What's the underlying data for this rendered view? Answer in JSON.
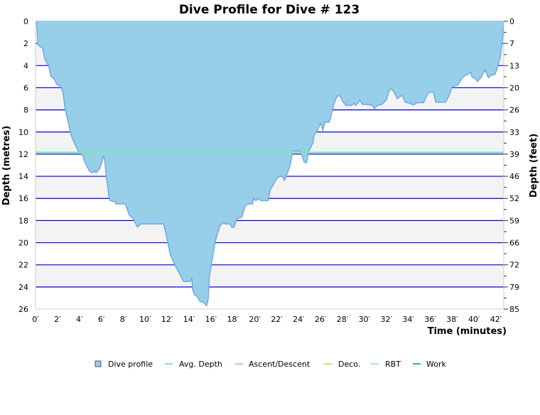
{
  "chart_data": {
    "type": "area",
    "title": "Dive Profile for Dive # 123",
    "xlabel": "Time (minutes)",
    "ylabel": "Depth (metres)",
    "ylabel_right": "Depth (feet)",
    "xlim": [
      0,
      42.7
    ],
    "ylim": [
      0,
      26
    ],
    "y_inverted": true,
    "grid": true,
    "x_ticks": [
      "0′",
      "2′",
      "4′",
      "6′",
      "8′",
      "10′",
      "12′",
      "14′",
      "16′",
      "18′",
      "20′",
      "22′",
      "24′",
      "26′",
      "28′",
      "30′",
      "32′",
      "34′",
      "36′",
      "38′",
      "40′",
      "42′"
    ],
    "y_ticks": [
      "0",
      "2",
      "4",
      "6",
      "8",
      "10",
      "12",
      "14",
      "16",
      "18",
      "20",
      "22",
      "24",
      "26"
    ],
    "y_ticks_right": [
      "0",
      "7",
      "13",
      "20",
      "26",
      "33",
      "39",
      "46",
      "52",
      "59",
      "66",
      "72",
      "79",
      "85"
    ],
    "avg_depth": 11.85,
    "legend_position": "bottom",
    "legend": [
      {
        "label": "Dive profile",
        "color": "#97cfe9",
        "kind": "box"
      },
      {
        "label": "Avg. Depth",
        "color": "#7fe3b8",
        "kind": "line"
      },
      {
        "label": "Ascent/Descent",
        "color": "#9be89b",
        "kind": "line"
      },
      {
        "label": "Deco.",
        "color": "#d6e060",
        "kind": "line"
      },
      {
        "label": "RBT",
        "color": "#a8dcf5",
        "kind": "line"
      },
      {
        "label": "Work",
        "color": "#2fbf8f",
        "kind": "line"
      }
    ],
    "colors": {
      "profile_fill": "#97cfe9",
      "profile_stroke": "#6aa8e8",
      "grid": "#0000e0",
      "band": "#f3f3f3"
    },
    "series": [
      {
        "name": "Dive profile",
        "points": [
          [
            0,
            0
          ],
          [
            0.1,
            0
          ],
          [
            0.2,
            2.0
          ],
          [
            0.3,
            2.2
          ],
          [
            0.65,
            2.4
          ],
          [
            0.87,
            3.5
          ],
          [
            1.2,
            4.0
          ],
          [
            1.4,
            5.0
          ],
          [
            1.7,
            5.2
          ],
          [
            1.95,
            5.7
          ],
          [
            2.3,
            5.9
          ],
          [
            2.5,
            6.4
          ],
          [
            2.7,
            7.9
          ],
          [
            3.0,
            9.2
          ],
          [
            3.25,
            10.3
          ],
          [
            3.6,
            11.1
          ],
          [
            3.9,
            11.7
          ],
          [
            4.3,
            12.1
          ],
          [
            4.5,
            12.7
          ],
          [
            4.9,
            13.5
          ],
          [
            5.2,
            13.7
          ],
          [
            5.4,
            13.5
          ],
          [
            5.5,
            13.7
          ],
          [
            5.85,
            13.3
          ],
          [
            6.2,
            12.2
          ],
          [
            6.3,
            12.4
          ],
          [
            6.4,
            13.6
          ],
          [
            6.7,
            15.8
          ],
          [
            6.8,
            16.2
          ],
          [
            7.25,
            16.3
          ],
          [
            7.35,
            16.5
          ],
          [
            8.2,
            16.5
          ],
          [
            8.55,
            17.5
          ],
          [
            8.9,
            17.8
          ],
          [
            9.3,
            18.6
          ],
          [
            9.6,
            18.3
          ],
          [
            11.7,
            18.3
          ],
          [
            12.0,
            19.7
          ],
          [
            12.3,
            21.1
          ],
          [
            12.8,
            22.2
          ],
          [
            13.2,
            22.9
          ],
          [
            13.5,
            23.5
          ],
          [
            14.1,
            23.5
          ],
          [
            14.25,
            23.2
          ],
          [
            14.35,
            24.3
          ],
          [
            14.5,
            24.7
          ],
          [
            14.7,
            24.8
          ],
          [
            15.0,
            25.3
          ],
          [
            15.35,
            25.4
          ],
          [
            15.6,
            25.7
          ],
          [
            15.75,
            25.1
          ],
          [
            15.85,
            23.1
          ],
          [
            16.0,
            22.2
          ],
          [
            16.35,
            20.1
          ],
          [
            16.55,
            19.3
          ],
          [
            16.85,
            18.4
          ],
          [
            17.2,
            18.2
          ],
          [
            17.3,
            18.3
          ],
          [
            17.75,
            18.3
          ],
          [
            17.9,
            18.6
          ],
          [
            18.1,
            18.6
          ],
          [
            18.4,
            17.8
          ],
          [
            18.8,
            17.7
          ],
          [
            19.15,
            16.6
          ],
          [
            19.5,
            16.5
          ],
          [
            19.8,
            16.5
          ],
          [
            19.9,
            16.0
          ],
          [
            20.1,
            16.2
          ],
          [
            20.35,
            16.0
          ],
          [
            20.55,
            16.2
          ],
          [
            21.2,
            16.2
          ],
          [
            21.4,
            15.2
          ],
          [
            21.6,
            14.9
          ],
          [
            21.9,
            14.35
          ],
          [
            22.2,
            14.0
          ],
          [
            22.5,
            14.0
          ],
          [
            22.7,
            14.35
          ],
          [
            22.9,
            13.9
          ],
          [
            23.2,
            13.1
          ],
          [
            23.4,
            12.0
          ],
          [
            23.5,
            11.7
          ],
          [
            24.1,
            11.7
          ],
          [
            24.3,
            12.1
          ],
          [
            24.5,
            12.7
          ],
          [
            24.7,
            12.8
          ],
          [
            24.9,
            11.8
          ],
          [
            25.3,
            11.0
          ],
          [
            25.4,
            10.3
          ],
          [
            25.7,
            9.85
          ],
          [
            26.0,
            9.2
          ],
          [
            26.2,
            9.85
          ],
          [
            26.4,
            9.1
          ],
          [
            26.8,
            9.1
          ],
          [
            27.0,
            8.35
          ],
          [
            27.2,
            7.5
          ],
          [
            27.5,
            6.75
          ],
          [
            27.8,
            6.75
          ],
          [
            28.0,
            7.2
          ],
          [
            28.3,
            7.6
          ],
          [
            28.8,
            7.6
          ],
          [
            29.1,
            7.4
          ],
          [
            29.2,
            7.6
          ],
          [
            29.6,
            7.1
          ],
          [
            29.8,
            7.5
          ],
          [
            30.7,
            7.55
          ],
          [
            30.9,
            7.9
          ],
          [
            31.2,
            7.6
          ],
          [
            31.6,
            7.5
          ],
          [
            32.0,
            7.1
          ],
          [
            32.2,
            6.4
          ],
          [
            32.4,
            6.1
          ],
          [
            32.6,
            6.2
          ],
          [
            32.8,
            6.6
          ],
          [
            33.0,
            7.0
          ],
          [
            33.3,
            6.75
          ],
          [
            33.5,
            6.75
          ],
          [
            33.7,
            7.3
          ],
          [
            34.1,
            7.4
          ],
          [
            34.5,
            7.55
          ],
          [
            34.8,
            7.35
          ],
          [
            35.4,
            7.35
          ],
          [
            35.6,
            6.85
          ],
          [
            35.9,
            6.4
          ],
          [
            36.3,
            6.4
          ],
          [
            36.5,
            7.3
          ],
          [
            37.4,
            7.3
          ],
          [
            37.7,
            6.75
          ],
          [
            38.0,
            5.9
          ],
          [
            38.5,
            5.75
          ],
          [
            39.0,
            5.0
          ],
          [
            39.4,
            4.8
          ],
          [
            39.7,
            4.6
          ],
          [
            39.8,
            5.0
          ],
          [
            40.2,
            5.25
          ],
          [
            40.3,
            5.45
          ],
          [
            40.6,
            5.1
          ],
          [
            41.0,
            4.4
          ],
          [
            41.3,
            5.1
          ],
          [
            41.6,
            4.85
          ],
          [
            41.9,
            4.8
          ],
          [
            42.1,
            4.3
          ],
          [
            42.4,
            3.2
          ],
          [
            42.6,
            1.5
          ],
          [
            42.7,
            0
          ]
        ]
      }
    ]
  }
}
